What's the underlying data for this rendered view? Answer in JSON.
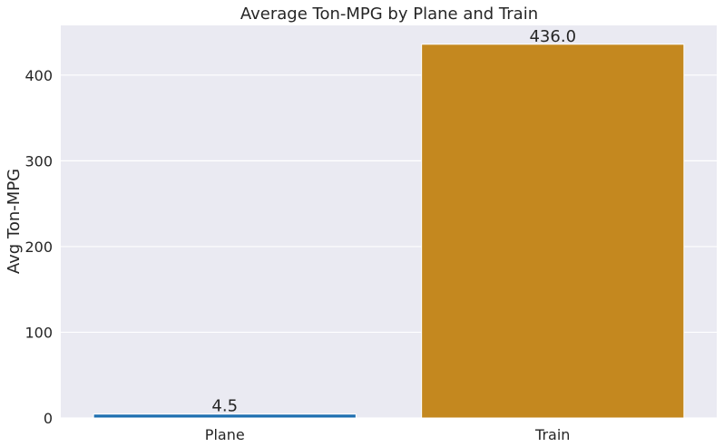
{
  "chart_data": {
    "type": "bar",
    "title": "Average Ton-MPG by Plane and Train",
    "xlabel": "",
    "ylabel": "Avg Ton-MPG",
    "categories": [
      "Plane",
      "Train"
    ],
    "values": [
      4.5,
      436.0
    ],
    "data_labels": [
      "4.5",
      "436.0"
    ],
    "bar_colors": [
      "#1f6fb0",
      "#c4881f"
    ],
    "yticks": [
      0,
      100,
      200,
      300,
      400
    ],
    "ylim": [
      0,
      458
    ],
    "grid": true,
    "legend": "none",
    "background_color": "#eaeaf2"
  }
}
